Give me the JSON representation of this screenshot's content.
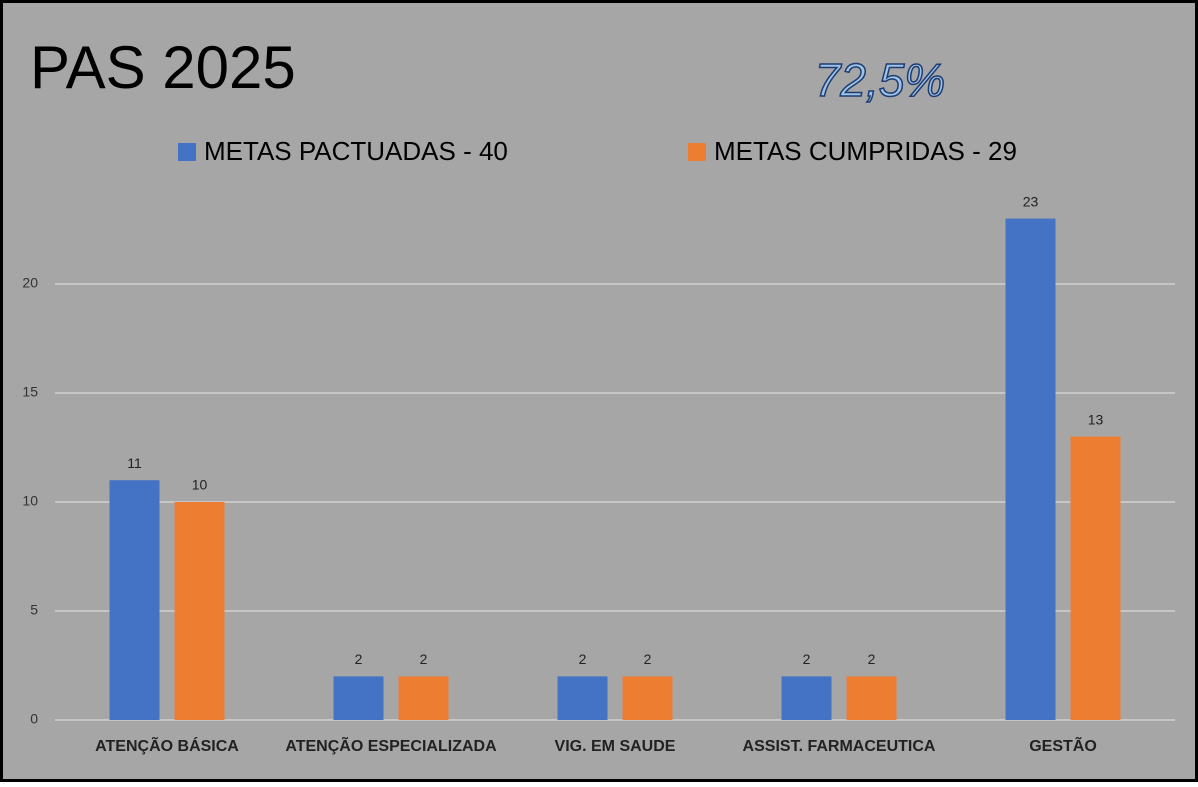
{
  "chart_data": {
    "type": "bar",
    "title": "PAS 2025",
    "annotation": "72,5%",
    "categories": [
      "ATENÇÃO BÁSICA",
      "ATENÇÃO ESPECIALIZADA",
      "VIG. EM SAUDE",
      "ASSIST. FARMACEUTICA",
      "GESTÃO"
    ],
    "series": [
      {
        "name": "METAS PACTUADAS - 40",
        "color": "#4472c4",
        "values": [
          11,
          2,
          2,
          2,
          23
        ]
      },
      {
        "name": "METAS CUMPRIDAS - 29",
        "color": "#ed7d31",
        "values": [
          10,
          2,
          2,
          2,
          13
        ]
      }
    ],
    "ylim": [
      0,
      25
    ],
    "yticks": [
      0,
      5,
      10,
      15,
      20
    ],
    "grid": true,
    "legend": "top"
  }
}
